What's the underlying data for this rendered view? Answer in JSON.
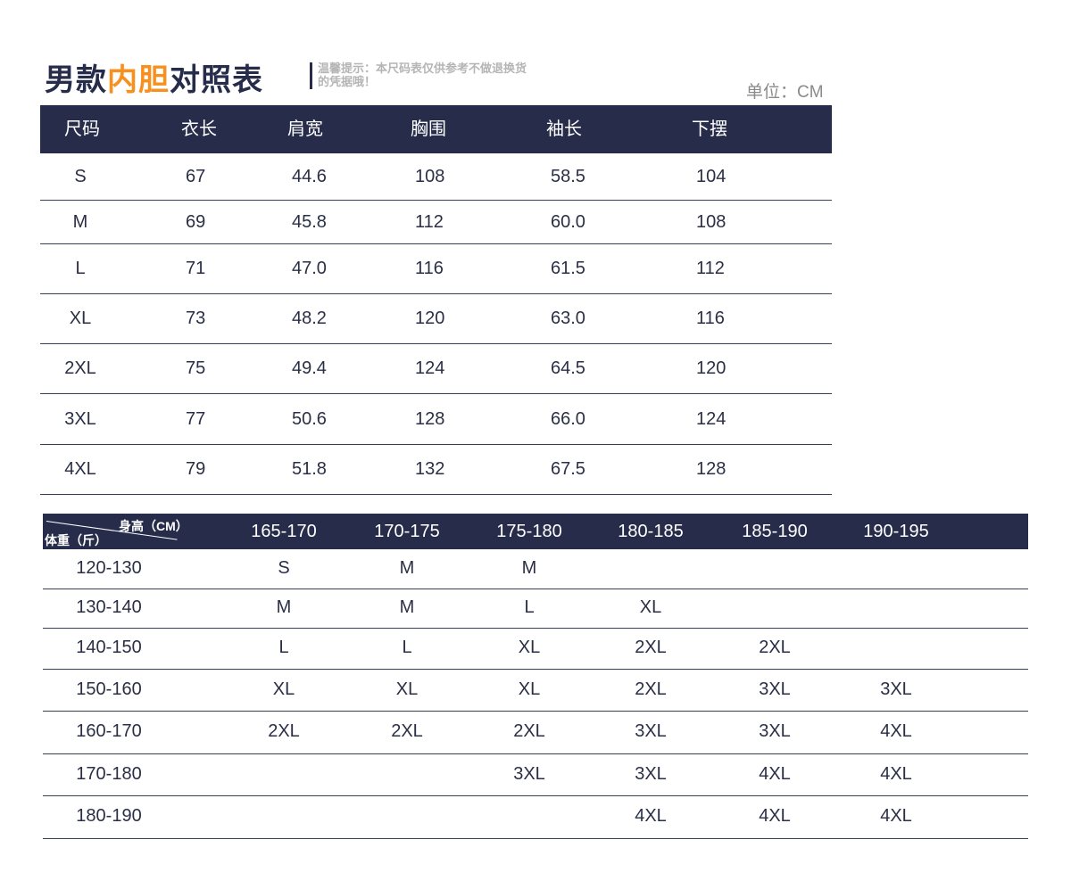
{
  "title": {
    "part1": "男款",
    "highlight": "内胆",
    "part2": "对照表"
  },
  "tip": "温馨提示：本尺码表仅供参考不做退换货的凭据哦！",
  "unit": "单位：CM",
  "colors": {
    "header_bg": "#262c4a",
    "accent": "#f7901e"
  },
  "size_table": {
    "headers": [
      "尺码",
      "衣长",
      "肩宽",
      "胸围",
      "袖长",
      "下摆"
    ],
    "rows": [
      [
        "S",
        "67",
        "44.6",
        "108",
        "58.5",
        "104"
      ],
      [
        "M",
        "69",
        "45.8",
        "112",
        "60.0",
        "108"
      ],
      [
        "L",
        "71",
        "47.0",
        "116",
        "61.5",
        "112"
      ],
      [
        "XL",
        "73",
        "48.2",
        "120",
        "63.0",
        "116"
      ],
      [
        "2XL",
        "75",
        "49.4",
        "124",
        "64.5",
        "120"
      ],
      [
        "3XL",
        "77",
        "50.6",
        "128",
        "66.0",
        "124"
      ],
      [
        "4XL",
        "79",
        "51.8",
        "132",
        "67.5",
        "128"
      ]
    ]
  },
  "recommend_table": {
    "corner_top": "身高（CM）",
    "corner_bottom": "体重（斤）",
    "headers": [
      "165-170",
      "170-175",
      "175-180",
      "180-185",
      "185-190",
      "190-195"
    ],
    "rows": [
      [
        "120-130",
        "S",
        "M",
        "M",
        "",
        "",
        ""
      ],
      [
        "130-140",
        "M",
        "M",
        "L",
        "XL",
        "",
        ""
      ],
      [
        "140-150",
        "L",
        "L",
        "XL",
        "2XL",
        "2XL",
        ""
      ],
      [
        "150-160",
        "XL",
        "XL",
        "XL",
        "2XL",
        "3XL",
        "3XL"
      ],
      [
        "160-170",
        "2XL",
        "2XL",
        "2XL",
        "3XL",
        "3XL",
        "4XL"
      ],
      [
        "170-180",
        "",
        "",
        "3XL",
        "3XL",
        "4XL",
        "4XL"
      ],
      [
        "180-190",
        "",
        "",
        "",
        "4XL",
        "4XL",
        "4XL"
      ]
    ]
  }
}
